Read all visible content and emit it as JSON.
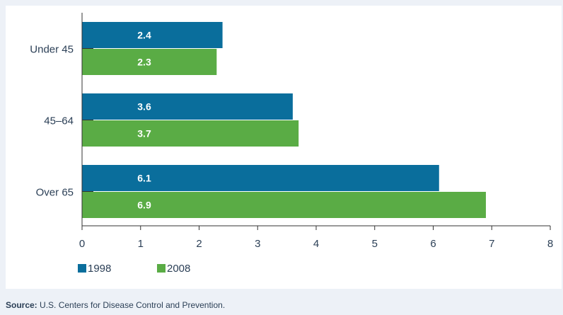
{
  "chart_data": {
    "type": "bar",
    "orientation": "horizontal",
    "categories": [
      "Under 45",
      "45–64",
      "Over 65"
    ],
    "series": [
      {
        "name": "1998",
        "values": [
          2.4,
          3.6,
          6.1
        ],
        "color": "#0a6e9c"
      },
      {
        "name": "2008",
        "values": [
          2.3,
          3.7,
          6.9
        ],
        "color": "#5aac45"
      }
    ],
    "x_ticks": [
      "0",
      "1",
      "2",
      "3",
      "4",
      "5",
      "6",
      "7",
      "8"
    ],
    "xlim": [
      0,
      8
    ],
    "grid": false,
    "legend_position": "bottom-left",
    "data_labels": true
  },
  "source": {
    "label": "Source:",
    "text": " U.S. Centers for Disease Control and Prevention."
  },
  "colors": {
    "background": "#edf1f7",
    "plot_background": "#ffffff",
    "axis": "#333333",
    "text": "#2b3f56",
    "bar_label": "#ffffff"
  }
}
